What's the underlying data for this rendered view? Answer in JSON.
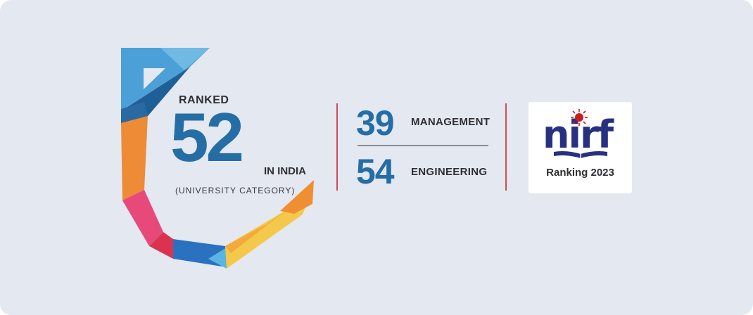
{
  "overall": {
    "ranked_label": "RANKED",
    "rank": "52",
    "scope": "IN INDIA",
    "category": "(UNIVERSITY CATEGORY)"
  },
  "subject_rankings": [
    {
      "rank": "39",
      "category": "MANAGEMENT"
    },
    {
      "rank": "54",
      "category": "ENGINEERING"
    }
  ],
  "badge": {
    "logo_text": "nirf",
    "caption": "Ranking 2023"
  },
  "colors": {
    "background": "#e4e8f1",
    "accent_blue": "#256ea5",
    "divider_red": "#d24a5b",
    "nirf_navy": "#27317f",
    "nirf_red": "#cc1b1f"
  },
  "icons": {
    "u_logo": "multicolor-u-shape-logo",
    "nirf_logo": "nirf-sun-book-logo"
  }
}
